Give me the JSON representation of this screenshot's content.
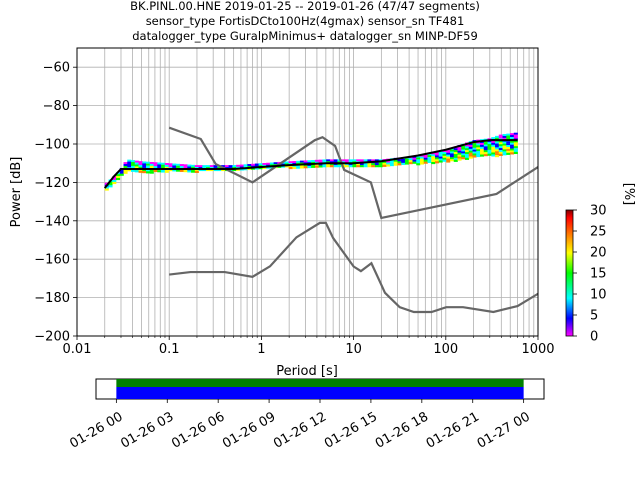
{
  "title_lines": [
    "BK.PINL.00.HNE   2019-01-25 -- 2019-01-26  (47/47 segments)",
    "sensor_type FortisDCto100Hz(4gmax) sensor_sn TF481",
    "datalogger_type GuralpMinimus+ datalogger_sn MINP-DF59"
  ],
  "chart_data": [
    {
      "type": "heatmap",
      "title": "BK.PINL.00.HNE   2019-01-25 -- 2019-01-26  (47/47 segments)",
      "xlabel": "Period [s]",
      "ylabel": "Power [dB]",
      "xscale": "log",
      "xlim": [
        0.01,
        1000
      ],
      "ylim": [
        -200,
        -50
      ],
      "x_ticks": [
        0.01,
        0.1,
        1,
        10,
        100,
        1000
      ],
      "x_tick_labels": [
        "0.01",
        "0.1",
        "1",
        "10",
        "100",
        "1000"
      ],
      "y_ticks": [
        -200,
        -180,
        -160,
        -140,
        -120,
        -100,
        -80,
        -60
      ],
      "y_tick_labels": [
        "−200",
        "−180",
        "−160",
        "−140",
        "−120",
        "−100",
        "−80",
        "−60"
      ],
      "grid": true,
      "colorbar": {
        "label": "[%]",
        "range": [
          0,
          30
        ],
        "ticks": [
          0,
          5,
          10,
          15,
          20,
          25,
          30
        ],
        "colormap": [
          "#ff00ff",
          "#0000ff",
          "#00ffff",
          "#00ff00",
          "#ffff00",
          "#ff8000",
          "#ff0000",
          "#800000"
        ]
      },
      "psd_band": {
        "period": [
          0.02,
          0.025,
          0.03,
          0.035,
          0.05,
          0.1,
          0.2,
          0.5,
          1,
          2,
          5,
          10,
          20,
          50,
          100,
          200,
          300,
          400,
          600
        ],
        "power_top": [
          -121,
          -117,
          -113,
          -108,
          -109,
          -110,
          -111,
          -111,
          -110,
          -109,
          -108,
          -108,
          -108,
          -106,
          -103,
          -98,
          -97,
          -95,
          -94
        ],
        "power_bottom": [
          -125,
          -121,
          -116,
          -114,
          -115,
          -114,
          -114,
          -114,
          -113,
          -112,
          -112,
          -112,
          -111,
          -110,
          -109,
          -107,
          -106,
          -106,
          -105
        ]
      },
      "mean_line": {
        "period": [
          0.02,
          0.025,
          0.03,
          0.05,
          0.1,
          0.2,
          0.5,
          1,
          2,
          5,
          10,
          20,
          50,
          100,
          200,
          300,
          400,
          600
        ],
        "power": [
          -123,
          -117,
          -113,
          -113,
          -113,
          -113,
          -113,
          -112,
          -111,
          -110,
          -110,
          -109,
          -106,
          -103,
          -99,
          -98,
          -98,
          -98
        ]
      },
      "noise_models": [
        {
          "period": [
            0.1,
            0.22,
            0.32,
            0.8,
            3.8,
            4.6,
            6.3,
            7.9,
            15.4,
            20,
            354.8,
            1000
          ],
          "power": [
            -91.5,
            -97.4,
            -110.5,
            -120,
            -98,
            -96.5,
            -101,
            -113.5,
            -120,
            -138.5,
            -126,
            -112
          ]
        },
        {
          "period": [
            0.1,
            0.17,
            0.4,
            0.8,
            1.24,
            2.4,
            4.3,
            5,
            6,
            10,
            12,
            15.6,
            21.9,
            31.6,
            45,
            70,
            101,
            154,
            328,
            600,
            1000
          ],
          "power": [
            -168,
            -166.7,
            -166.7,
            -169.2,
            -163.7,
            -148.6,
            -141.1,
            -141.1,
            -149,
            -163.8,
            -166.2,
            -162.1,
            -177.5,
            -185,
            -187.5,
            -187.5,
            -185,
            -185,
            -187.5,
            -184.4,
            -178
          ]
        }
      ]
    },
    {
      "type": "timeline",
      "tick_labels": [
        "01-26 00",
        "01-26 03",
        "01-26 06",
        "01-26 09",
        "01-26 12",
        "01-26 15",
        "01-26 18",
        "01-26 21",
        "01-27 00"
      ],
      "tick_hours": [
        0,
        3,
        6,
        9,
        12,
        15,
        18,
        21,
        24
      ],
      "xlim_hours": [
        -1.2,
        25.2
      ],
      "data_coverage_hours": [
        0,
        24
      ]
    }
  ],
  "colors": {
    "mean_line": "#000000",
    "noise_model": "#666666",
    "grid": "#b0b0b0",
    "timeline_top": "#008000",
    "timeline_bottom": "#0000ff"
  }
}
